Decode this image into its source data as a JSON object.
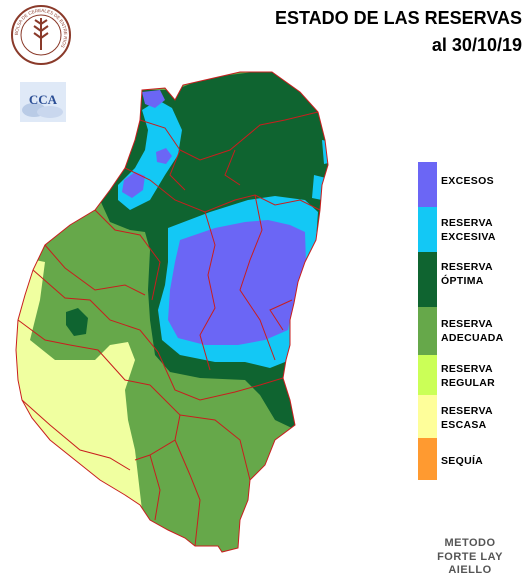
{
  "header": {
    "title": "ESTADO DE LAS RESERVAS",
    "date": "al 30/10/19"
  },
  "logos": {
    "seal_text": "BOLSA DE CEREALES DE ENTRE RIOS",
    "cca_text": "CCA"
  },
  "legend": [
    {
      "line1": "EXCESOS",
      "line2": "",
      "color": "#6b66f5"
    },
    {
      "line1": "RESERVA",
      "line2": "EXCESIVA",
      "color": "#13c8f5"
    },
    {
      "line1": "RESERVA",
      "line2": "ÓPTIMA",
      "color": "#0f6430"
    },
    {
      "line1": "RESERVA",
      "line2": "ADECUADA",
      "color": "#66a84a"
    },
    {
      "line1": "RESERVA",
      "line2": "REGULAR",
      "color": "#cbff57"
    },
    {
      "line1": "RESERVA",
      "line2": "ESCASA",
      "color": "#fefe9a"
    },
    {
      "line1": "SEQUÍA",
      "line2": "",
      "color": "#ff9a30"
    }
  ],
  "method": {
    "line1": "METODO",
    "line2": "FORTE LAY",
    "line3": "AIELLO"
  }
}
